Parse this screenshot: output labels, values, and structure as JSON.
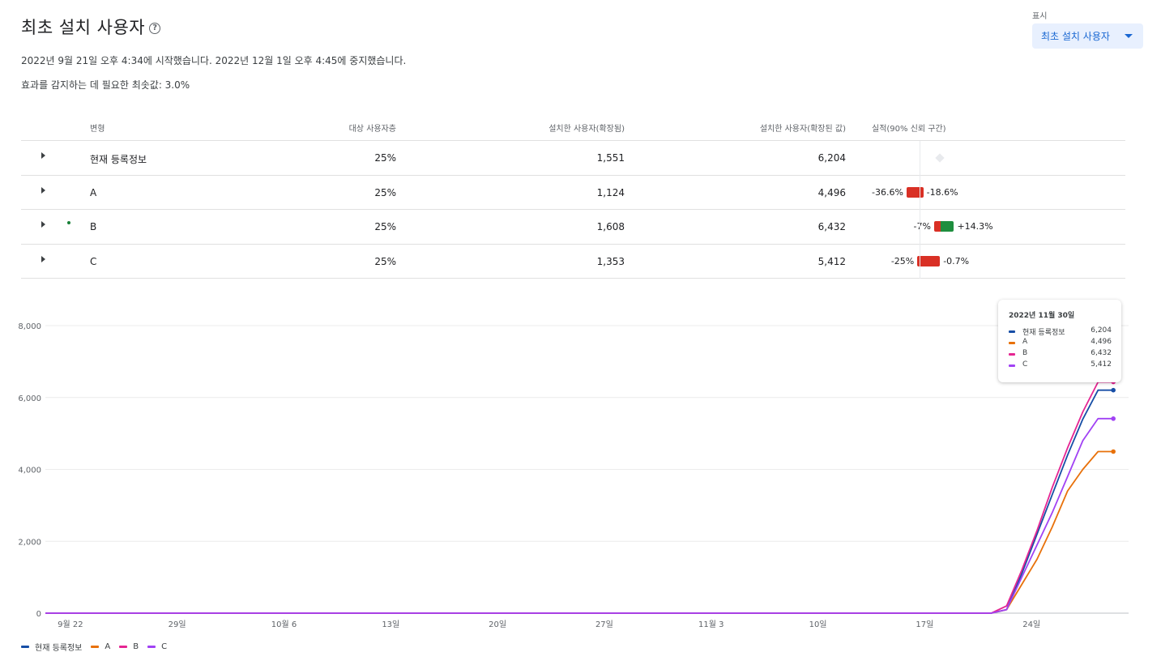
{
  "header": {
    "title": "최초 설치 사용자",
    "help_icon": "help-circle-icon",
    "info_dates": "2022년 9월 21일 오후 4:34에 시작했습니다. 2022년 12월 1일 오후 4:45에 중지했습니다.",
    "info_threshold": "효과를 감지하는 데 필요한 최솟값: 3.0%"
  },
  "display": {
    "label": "표시",
    "selected": "최초 설치 사용자"
  },
  "table": {
    "columns": [
      "변형",
      "대상 사용자층",
      "설치한 사용자(확장됨)",
      "설치한 사용자(확장된 값)",
      "실적(90% 신뢰 구간)"
    ],
    "rows": [
      {
        "variant": "현재 등록정보",
        "audience": "25%",
        "installs": "1,551",
        "installs_scaled": "6,204",
        "ci_low": "",
        "ci_high": "",
        "ci_low_value": 0,
        "ci_high_value": 0,
        "leader": false
      },
      {
        "variant": "A",
        "audience": "25%",
        "installs": "1,124",
        "installs_scaled": "4,496",
        "ci_low": "-36.6%",
        "ci_high": "-18.6%",
        "ci_low_value": -36.6,
        "ci_high_value": -18.6,
        "leader": false
      },
      {
        "variant": "B",
        "audience": "25%",
        "installs": "1,608",
        "installs_scaled": "6,432",
        "ci_low": "-7%",
        "ci_high": "+14.3%",
        "ci_low_value": -7,
        "ci_high_value": 14.3,
        "leader": true
      },
      {
        "variant": "C",
        "audience": "25%",
        "installs": "1,353",
        "installs_scaled": "5,412",
        "ci_low": "-25%",
        "ci_high": "-0.7%",
        "ci_low_value": -25,
        "ci_high_value": -0.7,
        "leader": false
      }
    ]
  },
  "colors": {
    "positive": "#1e8e3e",
    "negative": "#d93025",
    "current": "#174ea6",
    "a": "#e8710a",
    "b": "#e52592",
    "c": "#a142f4"
  },
  "tooltip": {
    "date": "2022년 11월 30일",
    "items": [
      {
        "name": "현재 등록정보",
        "value": "6,204"
      },
      {
        "name": "A",
        "value": "4,496"
      },
      {
        "name": "B",
        "value": "6,432"
      },
      {
        "name": "C",
        "value": "5,412"
      }
    ]
  },
  "chart_data": {
    "type": "line",
    "x_tick_labels": [
      "9월 22",
      "29일",
      "10월 6",
      "13일",
      "20일",
      "27일",
      "11월 3",
      "10일",
      "17일",
      "24일"
    ],
    "x_tick_days": [
      1,
      8,
      15,
      22,
      29,
      36,
      43,
      50,
      57,
      64
    ],
    "x_range": [
      0,
      71
    ],
    "ylim": [
      0,
      8000
    ],
    "y_ticks": [
      0,
      2000,
      4000,
      6000,
      8000
    ],
    "y_tick_labels": [
      "0",
      "2,000",
      "4,000",
      "6,000",
      "8,000"
    ],
    "grid": true,
    "legend_position": "bottom-left",
    "series": [
      {
        "name": "현재 등록정보",
        "color": "#174ea6",
        "points": [
          [
            0,
            0
          ],
          [
            62,
            0
          ],
          [
            63,
            100
          ],
          [
            64,
            1100
          ],
          [
            65,
            2200
          ],
          [
            66,
            3300
          ],
          [
            67,
            4400
          ],
          [
            68,
            5400
          ],
          [
            69,
            6204
          ],
          [
            70,
            6204
          ]
        ]
      },
      {
        "name": "A",
        "color": "#e8710a",
        "points": [
          [
            0,
            0
          ],
          [
            62,
            0
          ],
          [
            63,
            100
          ],
          [
            64,
            800
          ],
          [
            65,
            1500
          ],
          [
            66,
            2400
          ],
          [
            67,
            3400
          ],
          [
            68,
            4000
          ],
          [
            69,
            4496
          ],
          [
            70,
            4496
          ]
        ]
      },
      {
        "name": "B",
        "color": "#e52592",
        "points": [
          [
            0,
            0
          ],
          [
            62,
            0
          ],
          [
            63,
            200
          ],
          [
            64,
            1200
          ],
          [
            65,
            2300
          ],
          [
            66,
            3500
          ],
          [
            67,
            4600
          ],
          [
            68,
            5600
          ],
          [
            69,
            6432
          ],
          [
            70,
            6432
          ]
        ]
      },
      {
        "name": "C",
        "color": "#a142f4",
        "points": [
          [
            0,
            0
          ],
          [
            62,
            0
          ],
          [
            63,
            100
          ],
          [
            64,
            1000
          ],
          [
            65,
            1900
          ],
          [
            66,
            2800
          ],
          [
            67,
            3800
          ],
          [
            68,
            4800
          ],
          [
            69,
            5412
          ],
          [
            70,
            5412
          ]
        ]
      }
    ]
  }
}
